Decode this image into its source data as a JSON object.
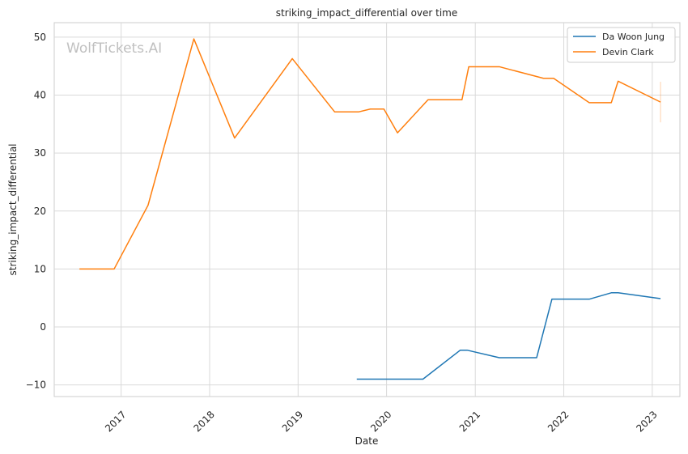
{
  "chart_data": {
    "type": "line",
    "title": "striking_impact_differential over time",
    "xlabel": "Date",
    "ylabel": "striking_impact_differential",
    "x_ticks": [
      "2017",
      "2018",
      "2019",
      "2020",
      "2021",
      "2022",
      "2023"
    ],
    "y_ticks": [
      "−10",
      "0",
      "10",
      "20",
      "30",
      "40",
      "50"
    ],
    "ylim": [
      -12,
      52.5
    ],
    "xlim": [
      "2016-03-31",
      "2023-04-25"
    ],
    "grid": true,
    "legend_position": "top-right",
    "watermark": "WolfTickets.AI",
    "series": [
      {
        "name": "Da Woon Jung",
        "color": "#1f77b4",
        "points": [
          [
            "2019-08-31",
            -9.0
          ],
          [
            "2020-05-30",
            -9.0
          ],
          [
            "2020-10-31",
            -4.0
          ],
          [
            "2020-11-28",
            -4.0
          ],
          [
            "2021-04-10",
            -5.3
          ],
          [
            "2021-09-11",
            -5.3
          ],
          [
            "2021-11-13",
            4.8
          ],
          [
            "2022-04-16",
            4.8
          ],
          [
            "2022-07-16",
            5.9
          ],
          [
            "2022-08-13",
            5.9
          ],
          [
            "2023-02-04",
            4.9
          ]
        ]
      },
      {
        "name": "Devin Clark",
        "color": "#ff7f0e",
        "points": [
          [
            "2016-07-13",
            10.0
          ],
          [
            "2016-12-03",
            10.0
          ],
          [
            "2017-04-22",
            21.0
          ],
          [
            "2017-10-28",
            49.7
          ],
          [
            "2018-04-14",
            32.6
          ],
          [
            "2018-12-08",
            46.3
          ],
          [
            "2019-06-01",
            37.1
          ],
          [
            "2019-09-07",
            37.1
          ],
          [
            "2019-10-26",
            37.6
          ],
          [
            "2019-12-21",
            37.6
          ],
          [
            "2020-02-15",
            33.5
          ],
          [
            "2020-06-20",
            39.2
          ],
          [
            "2020-11-07",
            39.2
          ],
          [
            "2020-12-05",
            44.9
          ],
          [
            "2021-04-10",
            44.9
          ],
          [
            "2021-10-09",
            42.9
          ],
          [
            "2021-11-20",
            42.9
          ],
          [
            "2022-04-16",
            38.7
          ],
          [
            "2022-07-16",
            38.7
          ],
          [
            "2022-08-13",
            42.4
          ],
          [
            "2023-02-04",
            38.8
          ]
        ]
      }
    ]
  }
}
